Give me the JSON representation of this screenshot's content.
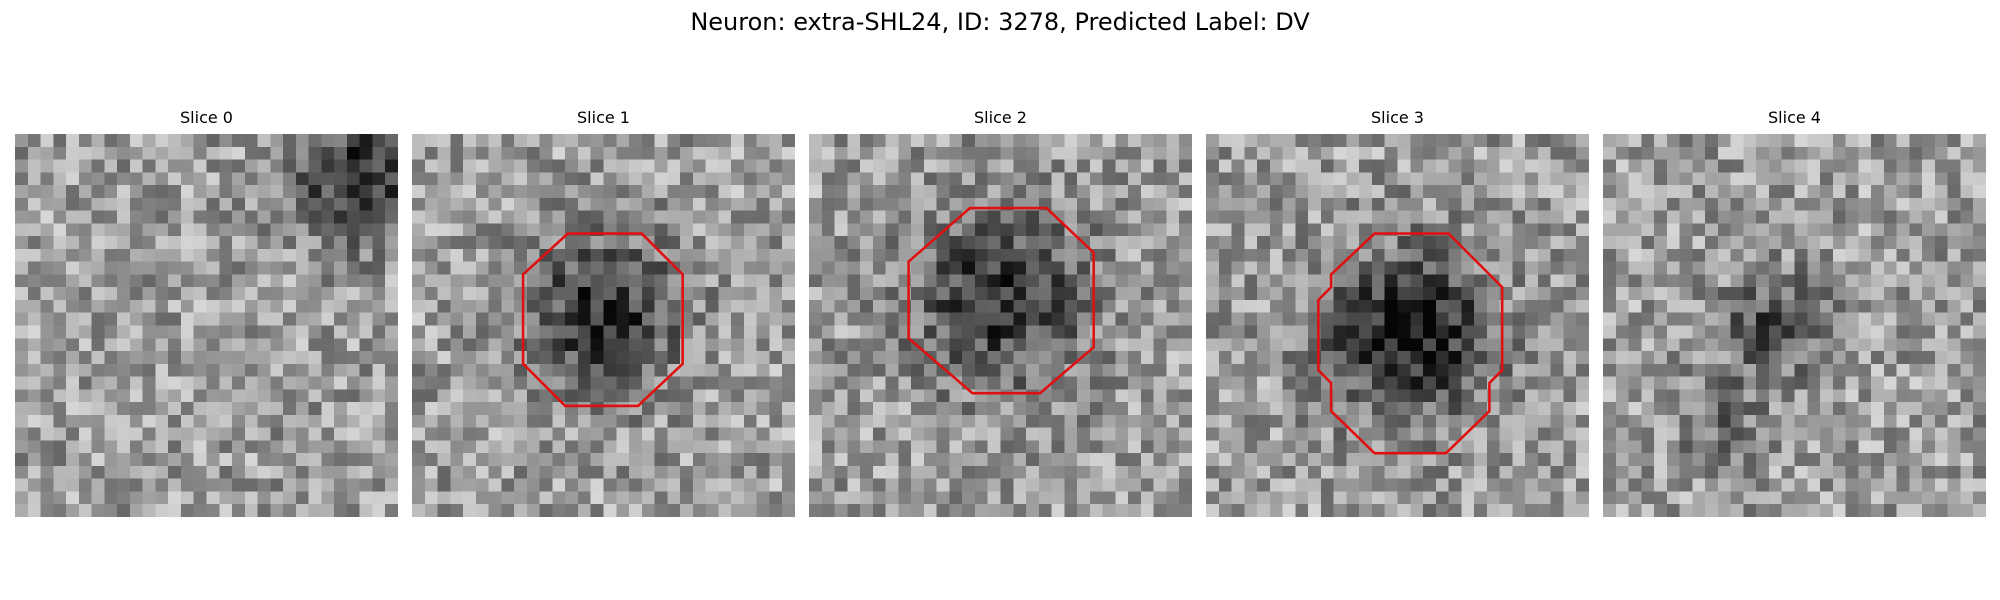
{
  "title": "Neuron: extra-SHL24, ID: 3278, Predicted Label: DV",
  "panels": [
    {
      "title": "Slice 0"
    },
    {
      "title": "Slice 1"
    },
    {
      "title": "Slice 2"
    },
    {
      "title": "Slice 3"
    },
    {
      "title": "Slice 4"
    }
  ]
}
